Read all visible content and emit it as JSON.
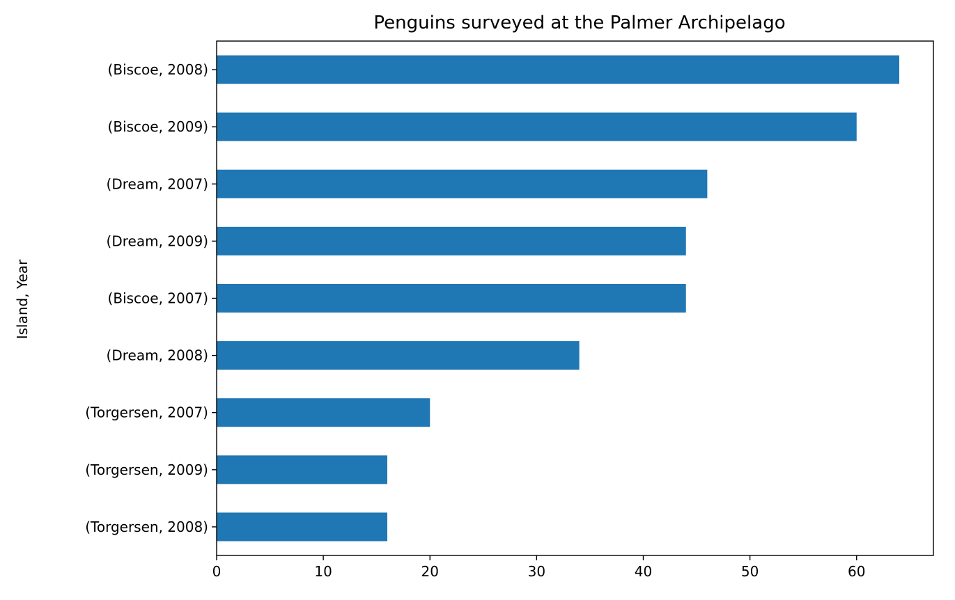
{
  "chart_data": {
    "type": "bar",
    "orientation": "horizontal",
    "title": "Penguins surveyed at the Palmer Archipelago",
    "xlabel": "",
    "ylabel": "Island, Year",
    "categories": [
      "(Biscoe, 2008)",
      "(Biscoe, 2009)",
      "(Dream, 2007)",
      "(Dream, 2009)",
      "(Biscoe, 2007)",
      "(Dream, 2008)",
      "(Torgersen, 2007)",
      "(Torgersen, 2009)",
      "(Torgersen, 2008)"
    ],
    "values": [
      64,
      60,
      46,
      44,
      44,
      34,
      20,
      16,
      16
    ],
    "xlim": [
      0,
      67.2
    ],
    "xticks": [
      0,
      10,
      20,
      30,
      40,
      50,
      60
    ],
    "bar_color": "#1f77b4",
    "grid": false,
    "legend": "none"
  }
}
